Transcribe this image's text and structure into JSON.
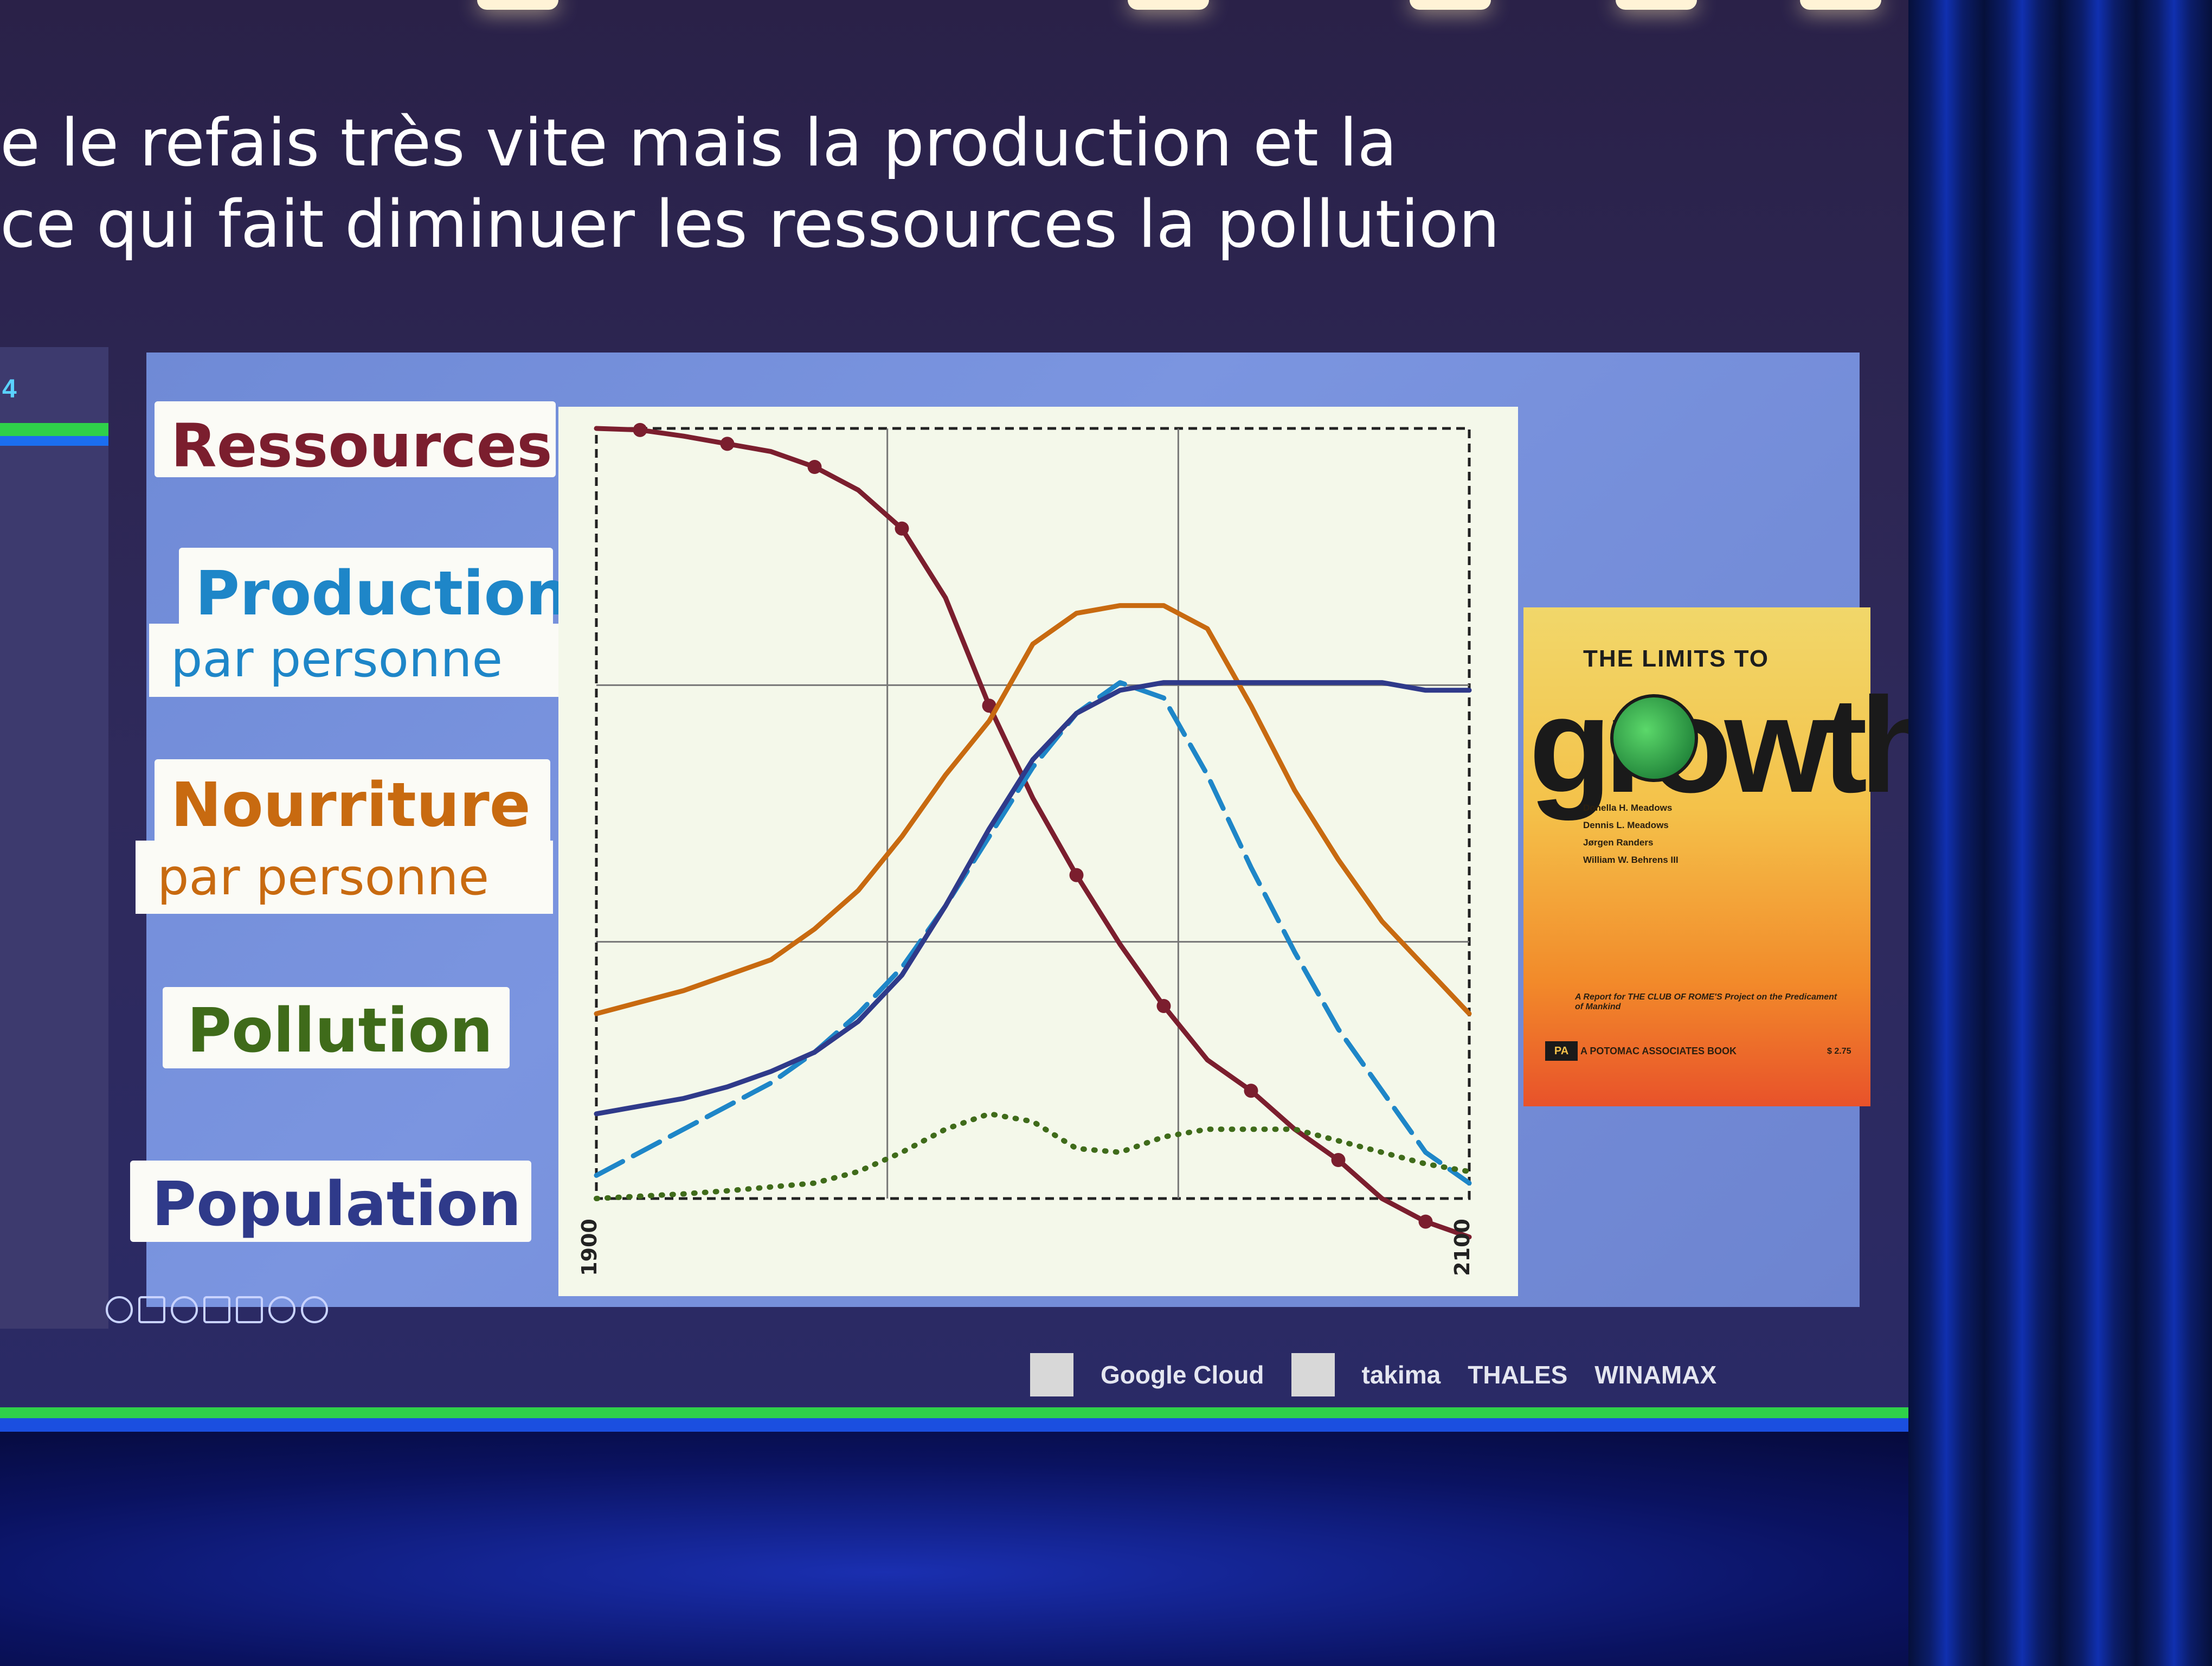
{
  "caption": {
    "line1": "e le refais très vite mais la production et la",
    "line2": "ce qui fait diminuer les ressources la pollution"
  },
  "side_panel": {
    "number": "4"
  },
  "legend": [
    {
      "key": "ressources",
      "title": "Ressources",
      "subtitle": "",
      "color": "#7b1e2e"
    },
    {
      "key": "production",
      "title": "Production",
      "subtitle": "par personne",
      "color": "#1e86c8"
    },
    {
      "key": "nourriture",
      "title": "Nourriture",
      "subtitle": "par personne",
      "color": "#c86a10"
    },
    {
      "key": "pollution",
      "title": "Pollution",
      "subtitle": "",
      "color": "#3f6b1a"
    },
    {
      "key": "population",
      "title": "Population",
      "subtitle": "",
      "color": "#2f3a8a"
    }
  ],
  "chart_data": {
    "type": "line",
    "xlabel": "",
    "ylabel": "",
    "xlim": [
      1900,
      2100
    ],
    "ylim": [
      0,
      1
    ],
    "x_tick_labels": [
      "1900",
      "2100"
    ],
    "grid": true,
    "x": [
      1900,
      1910,
      1920,
      1930,
      1940,
      1950,
      1960,
      1970,
      1980,
      1990,
      2000,
      2010,
      2020,
      2030,
      2040,
      2050,
      2060,
      2070,
      2080,
      2090,
      2100
    ],
    "series": [
      {
        "name": "Ressources",
        "style": "solid-dotted",
        "color": "#7b1e2e",
        "values": [
          1.0,
          0.998,
          0.99,
          0.98,
          0.97,
          0.95,
          0.92,
          0.87,
          0.78,
          0.64,
          0.52,
          0.42,
          0.33,
          0.25,
          0.18,
          0.14,
          0.09,
          0.05,
          0.0,
          -0.03,
          -0.05
        ]
      },
      {
        "name": "Production par personne",
        "style": "dashed",
        "color": "#1e86c8",
        "values": [
          0.03,
          0.06,
          0.09,
          0.12,
          0.15,
          0.19,
          0.24,
          0.3,
          0.38,
          0.47,
          0.56,
          0.63,
          0.67,
          0.65,
          0.55,
          0.43,
          0.32,
          0.22,
          0.14,
          0.06,
          0.02
        ]
      },
      {
        "name": "Nourriture par personne",
        "style": "solid",
        "color": "#c86a10",
        "values": [
          0.24,
          0.255,
          0.27,
          0.29,
          0.31,
          0.35,
          0.4,
          0.47,
          0.55,
          0.62,
          0.72,
          0.76,
          0.77,
          0.77,
          0.74,
          0.64,
          0.53,
          0.44,
          0.36,
          0.3,
          0.24
        ]
      },
      {
        "name": "Pollution",
        "style": "dotted",
        "color": "#3f6b1a",
        "values": [
          0.0,
          0.003,
          0.006,
          0.01,
          0.015,
          0.02,
          0.035,
          0.06,
          0.09,
          0.11,
          0.1,
          0.065,
          0.06,
          0.08,
          0.09,
          0.09,
          0.09,
          0.075,
          0.06,
          0.045,
          0.035
        ]
      },
      {
        "name": "Population",
        "style": "solid",
        "color": "#2f3a8a",
        "values": [
          0.11,
          0.12,
          0.13,
          0.145,
          0.165,
          0.19,
          0.23,
          0.29,
          0.38,
          0.48,
          0.57,
          0.63,
          0.66,
          0.67,
          0.67,
          0.67,
          0.67,
          0.67,
          0.67,
          0.66,
          0.66
        ]
      }
    ]
  },
  "book": {
    "top": "THE LIMITS TO",
    "title": "growth",
    "authors": [
      "Donella H. Meadows",
      "Dennis L. Meadows",
      "Jørgen Randers",
      "William W. Behrens III"
    ],
    "report": "A Report for THE CLUB OF ROME'S Project on the Predicament of Mankind",
    "publisher_logo": "PA",
    "publisher": "A POTOMAC ASSOCIATES BOOK",
    "price": "$ 2.75"
  },
  "sponsors": [
    "Google Cloud",
    "takima",
    "THALES",
    "WINAMAX"
  ]
}
